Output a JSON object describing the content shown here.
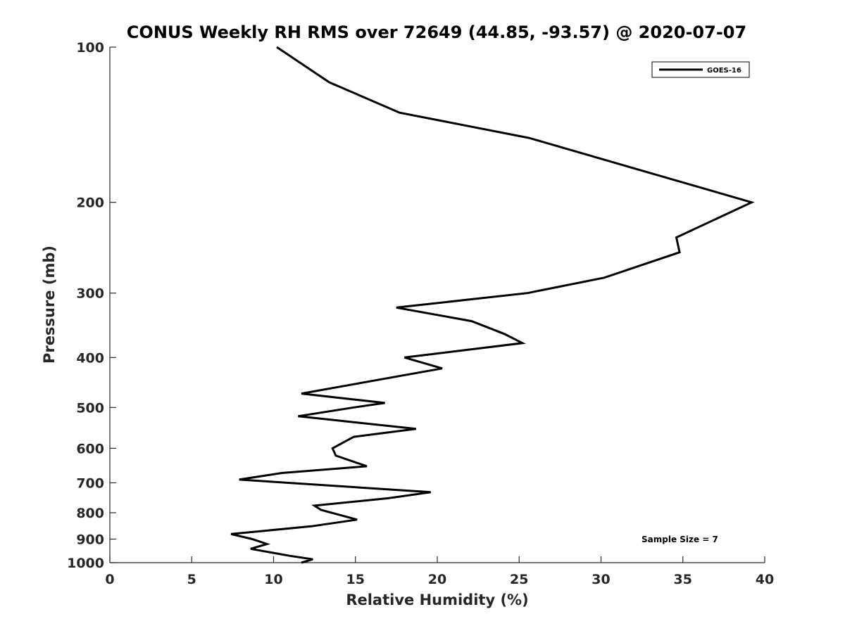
{
  "chart_data": {
    "type": "line",
    "title": "CONUS Weekly RH RMS over 72649 (44.85, -93.57) @ 2020-07-07",
    "xlabel": "Relative Humidity (%)",
    "ylabel": "Pressure (mb)",
    "xlim": [
      0,
      40
    ],
    "ylim": [
      1000,
      100
    ],
    "yscale": "log",
    "x_ticks": [
      0,
      5,
      10,
      15,
      20,
      25,
      30,
      35,
      40
    ],
    "y_ticks": [
      100,
      200,
      300,
      400,
      500,
      600,
      700,
      800,
      900,
      1000
    ],
    "grid": false,
    "legend_position": "top-right",
    "line_color": "#000000",
    "series": [
      {
        "name": "GOES-16",
        "x": [
          10.2,
          13.4,
          17.7,
          25.6,
          39.2,
          34.6,
          34.8,
          30.2,
          25.5,
          17.5,
          22.1,
          24.1,
          25.2,
          18.0,
          20.3,
          11.7,
          16.8,
          14.9,
          11.5,
          18.7,
          14.9,
          13.6,
          13.8,
          15.7,
          10.5,
          7.9,
          19.6,
          17.0,
          12.5,
          12.9,
          15.1,
          12.3,
          7.4,
          8.7,
          9.6,
          8.6,
          11.0,
          12.4,
          11.7
        ],
        "y": [
          100,
          117,
          134,
          150,
          200,
          234,
          250,
          280,
          300,
          320,
          340,
          360,
          375,
          400,
          420,
          470,
          490,
          500,
          520,
          550,
          570,
          600,
          620,
          650,
          670,
          690,
          730,
          750,
          775,
          790,
          825,
          850,
          880,
          900,
          920,
          940,
          970,
          985,
          1000
        ]
      }
    ],
    "annotation": "Sample Size = 7"
  }
}
